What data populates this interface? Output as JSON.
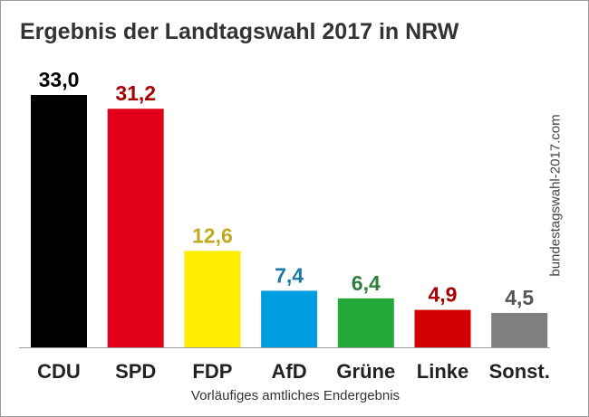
{
  "header": {
    "title": "Ergebnis der Landtagswahl 2017 in NRW"
  },
  "footer": {
    "subtitle": "Vorläufiges amtliches Endergebnis",
    "watermark": "bundestagswahl-2017.com"
  },
  "chart_data": {
    "type": "bar",
    "title": "Ergebnis der Landtagswahl 2017 in NRW",
    "subtitle": "Vorläufiges amtliches Endergebnis",
    "xlabel": "",
    "ylabel": "",
    "ylim": [
      0,
      33
    ],
    "grid": false,
    "legend": "none",
    "categories": [
      "CDU",
      "SPD",
      "FDP",
      "AfD",
      "Grüne",
      "Linke",
      "Sonst."
    ],
    "values": [
      33.0,
      31.2,
      12.6,
      7.4,
      6.4,
      4.9,
      4.5
    ],
    "value_labels": [
      "33,0",
      "31,2",
      "12,6",
      "7,4",
      "6,4",
      "4,9",
      "4,5"
    ],
    "bar_colors": [
      "#000000",
      "#e2001a",
      "#ffed00",
      "#009ee0",
      "#23a839",
      "#d20000",
      "#7f7f7f"
    ],
    "label_colors": [
      "#000000",
      "#a50000",
      "#c2aa1d",
      "#1a7aa8",
      "#2f7d3a",
      "#a50000",
      "#555555"
    ]
  }
}
